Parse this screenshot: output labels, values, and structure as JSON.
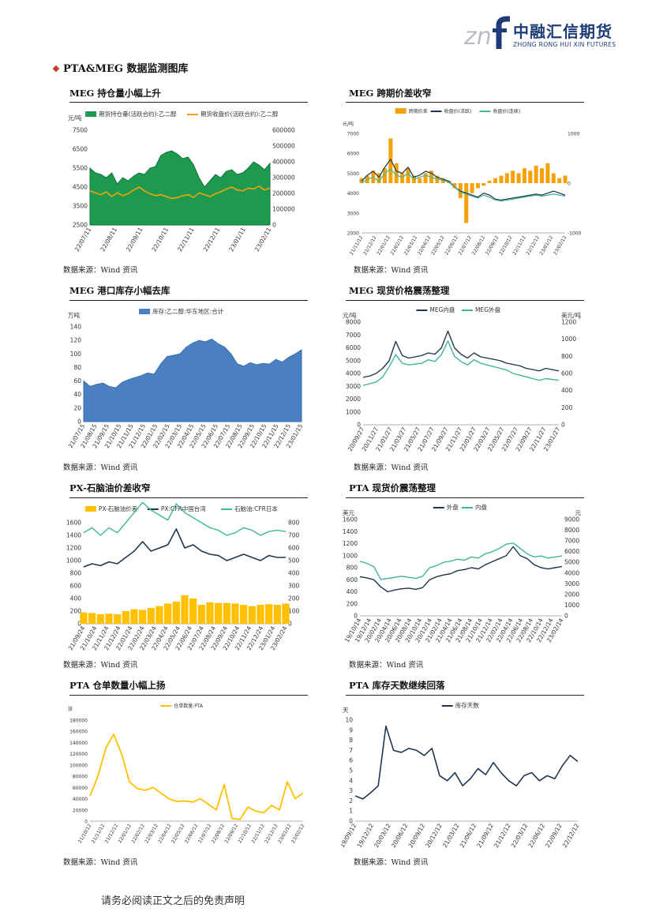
{
  "logo": {
    "mark": "znf",
    "name_cn": "中融汇信期货",
    "name_en": "ZHONG RONG HUI XIN FUTURES"
  },
  "section": {
    "title": "PTA&MEG 数据监测图库"
  },
  "footer": "请务必阅读正文之后的免责声明",
  "colors": {
    "green": "#1e9a50",
    "orange": "#f5a20a",
    "navy": "#1f3550",
    "teal": "#3fb59b",
    "blue": "#4a7fc1",
    "yellow": "#ffc000"
  },
  "panels": [
    {
      "title": "MEG 持仓量小幅上升",
      "source": "数据来源：Wind 资讯",
      "chart_data": {
        "type": "area",
        "left_unit": "元/吨",
        "legend": [
          "期货持仓量(活跃合约):乙二醇",
          "期货收盘价(活跃合约):乙二醇"
        ],
        "y_ticks": [
          "7500",
          "6500",
          "5500",
          "4500",
          "3500",
          "2500"
        ],
        "y2_ticks": [
          "600000",
          "500000",
          "400000",
          "300000",
          "200000",
          "100000",
          "0"
        ],
        "x_ticks": [
          "22/07/11",
          "22/08/11",
          "22/09/11",
          "22/10/11",
          "22/11/11",
          "22/12/11",
          "23/01/11",
          "23/02/11"
        ],
        "ylim": [
          2500,
          7500
        ],
        "y2lim": [
          0,
          600000
        ],
        "series": [
          {
            "values": [
              360000,
              330000,
              320000,
              300000,
              330000,
              260000,
              300000,
              280000,
              310000,
              330000,
              320000,
              360000,
              370000,
              440000,
              460000,
              470000,
              450000,
              420000,
              430000,
              380000,
              300000,
              240000,
              280000,
              320000,
              300000,
              340000,
              350000,
              320000,
              330000,
              360000,
              400000,
              380000,
              350000,
              390000
            ]
          },
          {
            "values": [
              4300,
              4200,
              4100,
              4250,
              4000,
              4200,
              4050,
              4150,
              4350,
              4500,
              4300,
              4150,
              4050,
              4100,
              4000,
              3900,
              3950,
              4050,
              4100,
              3950,
              4200,
              4100,
              4000,
              4150,
              4250,
              4400,
              4500,
              4350,
              4300,
              4450,
              4400,
              4550,
              4350,
              4450
            ]
          }
        ]
      }
    },
    {
      "title": "MEG 跨期价差收窄",
      "source": "数据来源：Wind 资讯",
      "chart_data": {
        "type": "line",
        "left_unit": "元/吨",
        "legend": [
          "跨期价差",
          "收盘价(活跃)",
          "收盘价(连续)"
        ],
        "y_ticks": [
          "7000",
          "6000",
          "5000",
          "4000",
          "3000",
          "2000"
        ],
        "y2_ticks": [
          "1000",
          "0",
          "-1000"
        ],
        "x_ticks": [
          "21/11/12",
          "21/12/12",
          "22/01/12",
          "22/02/12",
          "22/03/12",
          "22/04/12",
          "22/05/12",
          "22/06/12",
          "22/07/12",
          "22/08/12",
          "22/09/12",
          "22/10/12",
          "22/11/12",
          "22/12/12",
          "23/01/12",
          "23/02/12"
        ],
        "ylim": [
          2000,
          7000
        ],
        "y2lim": [
          -1000,
          1000
        ],
        "series": [
          {
            "values": [
              100,
              150,
              250,
              200,
              300,
              900,
              400,
              200,
              300,
              150,
              100,
              200,
              250,
              150,
              100,
              50,
              -100,
              -300,
              -800,
              -200,
              -100,
              -50,
              50,
              100,
              150,
              200,
              250,
              200,
              300,
              250,
              350,
              300,
              400,
              200,
              100,
              150
            ]
          },
          {
            "values": [
              4600,
              4900,
              5100,
              4800,
              5300,
              5700,
              5100,
              5000,
              5300,
              4800,
              4900,
              5100,
              5000,
              4800,
              4700,
              4600,
              4300,
              4100,
              4000,
              3900,
              3800,
              4000,
              3900,
              3700,
              3650,
              3700,
              3750,
              3800,
              3850,
              3900,
              3950,
              3900,
              4000,
              4100,
              4000,
              3900
            ]
          },
          {
            "values": [
              4500,
              4700,
              4800,
              4600,
              5000,
              5200,
              4900,
              4800,
              5000,
              4700,
              4800,
              4900,
              4800,
              4700,
              4650,
              4550,
              4300,
              4050,
              3950,
              3850,
              3750,
              3900,
              3800,
              3650,
              3600,
              3650,
              3700,
              3750,
              3800,
              3850,
              3900,
              3850,
              3900,
              3950,
              3900,
              3850
            ]
          }
        ]
      }
    },
    {
      "title": "MEG 港口库存小幅去库",
      "source": "数据来源：Wind 资讯",
      "chart_data": {
        "type": "area",
        "left_unit": "万吨",
        "legend": [
          "库存:乙二醇:华东地区:合计"
        ],
        "y_ticks": [
          "140",
          "120",
          "100",
          "80",
          "60",
          "40",
          "20",
          "0"
        ],
        "x_ticks": [
          "21/07/15",
          "21/08/15",
          "21/09/15",
          "21/10/15",
          "21/11/15",
          "21/12/15",
          "22/01/15",
          "22/02/15",
          "22/03/15",
          "22/04/15",
          "22/05/15",
          "22/06/15",
          "22/07/15",
          "22/08/15",
          "22/09/15",
          "22/10/15",
          "22/11/15",
          "22/12/15",
          "23/01/15"
        ],
        "ylim": [
          0,
          140
        ],
        "series": [
          {
            "values": [
              60,
              52,
              55,
              57,
              52,
              50,
              58,
              62,
              65,
              68,
              72,
              70,
              85,
              96,
              98,
              100,
              110,
              116,
              120,
              118,
              122,
              115,
              110,
              100,
              85,
              82,
              87,
              84,
              86,
              85,
              92,
              88,
              95,
              100,
              106
            ]
          }
        ]
      }
    },
    {
      "title": "MEG 现货价格震荡整理",
      "source": "数据来源：Wind 资讯",
      "chart_data": {
        "type": "line",
        "left_unit": "元/吨",
        "right_unit": "美元/吨",
        "legend": [
          "MEG内盘",
          "MEG外盘"
        ],
        "y_ticks": [
          "8000",
          "7000",
          "6000",
          "5000",
          "4000",
          "3000",
          "2000",
          "1000",
          "0"
        ],
        "y2_ticks": [
          "1200",
          "1000",
          "800",
          "600",
          "400",
          "200",
          "0"
        ],
        "x_ticks": [
          "20/09/27",
          "20/11/27",
          "21/01/27",
          "21/03/27",
          "21/05/27",
          "21/07/27",
          "21/09/27",
          "21/11/27",
          "22/01/27",
          "22/03/27",
          "22/05/27",
          "22/07/27",
          "22/09/27",
          "22/11/27",
          "23/01/27"
        ],
        "ylim": [
          0,
          8000
        ],
        "y2lim": [
          0,
          1200
        ],
        "series": [
          {
            "values": [
              3700,
              3800,
              4000,
              4400,
              5000,
              6500,
              5400,
              5200,
              5300,
              5400,
              5600,
              5500,
              6000,
              7300,
              6000,
              5500,
              5200,
              5600,
              5300,
              5200,
              5100,
              5000,
              4800,
              4700,
              4600,
              4400,
              4300,
              4200,
              4400,
              4300,
              4200
            ]
          },
          {
            "values": [
              460,
              480,
              500,
              560,
              680,
              820,
              720,
              700,
              710,
              720,
              760,
              740,
              820,
              980,
              800,
              740,
              700,
              760,
              720,
              700,
              680,
              660,
              640,
              600,
              580,
              560,
              540,
              520,
              540,
              530,
              520
            ]
          }
        ]
      }
    },
    {
      "title": "PX-石脑油价差收窄",
      "source": "数据来源：Wind 资讯",
      "chart_data": {
        "type": "bar",
        "legend": [
          "PX-石脑油价差",
          "PX:CFR中国台湾",
          "石脑油:CFR日本"
        ],
        "y_ticks": [
          "1600",
          "1400",
          "1200",
          "1000",
          "800",
          "600",
          "400",
          "200",
          "0"
        ],
        "y2_ticks": [
          "800",
          "700",
          "600",
          "500",
          "400",
          "300",
          "200",
          "100",
          "0"
        ],
        "x_ticks": [
          "21/09/24",
          "21/10/24",
          "21/11/24",
          "21/12/24",
          "22/01/24",
          "22/02/24",
          "22/03/24",
          "22/04/24",
          "22/05/24",
          "22/06/24",
          "22/07/24",
          "22/08/24",
          "22/09/24",
          "22/10/24",
          "22/11/24",
          "22/12/24",
          "23/01/24",
          "23/02/24"
        ],
        "ylim": [
          0,
          1600
        ],
        "y2lim": [
          0,
          800
        ],
        "series": [
          {
            "values": [
              180,
              170,
              150,
              160,
              150,
              200,
              230,
              220,
              250,
              280,
              320,
              350,
              450,
              400,
              300,
              340,
              330,
              330,
              320,
              300,
              280,
              300,
              310,
              300,
              320
            ]
          },
          {
            "values": [
              900,
              950,
              920,
              980,
              950,
              1050,
              1150,
              1300,
              1150,
              1200,
              1250,
              1500,
              1200,
              1250,
              1150,
              1100,
              1080,
              1000,
              1050,
              1100,
              1050,
              1000,
              1080,
              1050,
              1050
            ]
          },
          {
            "values": [
              720,
              760,
              700,
              760,
              720,
              800,
              880,
              960,
              900,
              860,
              820,
              950,
              880,
              840,
              800,
              760,
              740,
              700,
              720,
              760,
              740,
              700,
              730,
              740,
              730
            ]
          }
        ]
      }
    },
    {
      "title": "PTA 现货价震荡整理",
      "source": "数据来源：Wind 资讯",
      "chart_data": {
        "type": "line",
        "left_unit": "美元",
        "right_unit": "元",
        "legend": [
          "外盘",
          "内盘"
        ],
        "y_ticks": [
          "1600",
          "1400",
          "1200",
          "1000",
          "800",
          "600",
          "400",
          "200",
          "0"
        ],
        "y2_ticks": [
          "9000",
          "8000",
          "7000",
          "6000",
          "5000",
          "4000",
          "3000",
          "2000",
          "1000",
          "0"
        ],
        "x_ticks": [
          "19/10/14",
          "19/12/14",
          "20/02/14",
          "20/04/14",
          "20/06/14",
          "20/08/14",
          "20/10/14",
          "20/12/14",
          "21/02/14",
          "21/04/14",
          "21/06/14",
          "21/08/14",
          "21/10/14",
          "21/12/14",
          "22/02/14",
          "22/04/14",
          "22/06/14",
          "22/08/14",
          "22/10/14",
          "22/12/14",
          "23/02/14"
        ],
        "ylim": [
          0,
          1600
        ],
        "y2lim": [
          0,
          9000
        ],
        "series": [
          {
            "values": [
              650,
              630,
              600,
              480,
              400,
              430,
              450,
              460,
              440,
              470,
              600,
              650,
              680,
              700,
              750,
              770,
              800,
              780,
              850,
              900,
              950,
              1000,
              1150,
              1000,
              950,
              850,
              800,
              780,
              800,
              820
            ]
          },
          {
            "values": [
              5100,
              4900,
              4600,
              3400,
              3500,
              3600,
              3700,
              3600,
              3500,
              3700,
              4500,
              4700,
              5000,
              5100,
              5300,
              5200,
              5500,
              5400,
              5800,
              6000,
              6300,
              6700,
              6800,
              6300,
              5800,
              5500,
              5600,
              5400,
              5500,
              5600
            ]
          }
        ]
      }
    },
    {
      "title": "PTA 仓单数量小幅上扬",
      "source": "数据来源：Wind 资讯",
      "chart_data": {
        "type": "line",
        "left_unit": "张",
        "legend": [
          "仓单数量:PTA"
        ],
        "y_ticks": [
          "180000",
          "160000",
          "140000",
          "120000",
          "100000",
          "80000",
          "60000",
          "40000",
          "20000",
          "0"
        ],
        "x_ticks": [
          "21/10/12",
          "21/11/12",
          "21/12/12",
          "22/01/12",
          "22/02/12",
          "22/03/12",
          "22/04/12",
          "22/05/12",
          "22/06/12",
          "22/07/12",
          "22/08/12",
          "22/09/12",
          "22/10/12",
          "22/11/12",
          "22/12/12",
          "23/01/12",
          "23/02/12"
        ],
        "ylim": [
          0,
          180000
        ],
        "series": [
          {
            "values": [
              45000,
              80000,
              130000,
              155000,
              120000,
              70000,
              58000,
              55000,
              60000,
              50000,
              40000,
              35000,
              36000,
              34000,
              40000,
              30000,
              20000,
              65000,
              5000,
              3000,
              25000,
              18000,
              15000,
              28000,
              20000,
              70000,
              40000,
              50000
            ]
          }
        ]
      }
    },
    {
      "title": "PTA 库存天数继续回落",
      "source": "数据来源：Wind 资讯",
      "chart_data": {
        "type": "line",
        "left_unit": "天",
        "legend": [
          "库存天数"
        ],
        "y_ticks": [
          "10",
          "9",
          "8",
          "7",
          "6",
          "5",
          "4",
          "3",
          "2",
          "1",
          "0"
        ],
        "x_ticks": [
          "19/09/12",
          "19/12/12",
          "20/03/12",
          "20/06/12",
          "20/09/12",
          "20/12/12",
          "21/03/12",
          "21/06/12",
          "21/09/12",
          "21/12/12",
          "22/03/12",
          "22/06/12",
          "22/09/12",
          "22/12/12"
        ],
        "ylim": [
          0,
          10
        ],
        "series": [
          {
            "values": [
              2.5,
              2.2,
              2.8,
              3.5,
              9.4,
              7.0,
              6.8,
              7.2,
              7.0,
              6.5,
              7.2,
              4.5,
              4.0,
              4.8,
              3.5,
              4.2,
              5.2,
              4.6,
              5.8,
              4.8,
              4.0,
              3.5,
              4.5,
              4.8,
              4.0,
              4.5,
              4.2,
              5.5,
              6.5,
              5.9
            ]
          }
        ]
      }
    }
  ]
}
